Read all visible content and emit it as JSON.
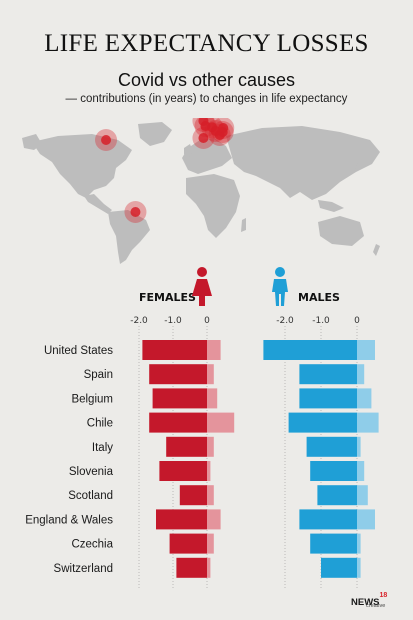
{
  "header": {
    "title": "LIFE EXPECTANCY LOSSES",
    "subtitle": "Covid vs other causes",
    "subtitle_note": "— contributions (in years) to changes in life expectancy"
  },
  "panels": {
    "females_label": "FEMALES",
    "males_label": "MALES"
  },
  "logo": {
    "main": "NEWS",
    "num": "18",
    "sub": "creative"
  },
  "icons": {
    "female": "female-person-icon",
    "male": "male-person-icon",
    "map": "world-map-icon"
  },
  "colors": {
    "female_dark": "#c4182b",
    "female_light": "#e4949c",
    "male_dark": "#1f9fd6",
    "male_light": "#8fcde9",
    "map_land": "#bdbdbd",
    "map_marker": "#d62029",
    "background": "#ecebe8"
  },
  "chart_data": [
    {
      "type": "bar",
      "orientation": "horizontal",
      "stacked": true,
      "panel": "FEMALES",
      "categories": [
        "United States",
        "Spain",
        "Belgium",
        "Chile",
        "Italy",
        "Slovenia",
        "Scotland",
        "England & Wales",
        "Czechia",
        "Switzerland"
      ],
      "series": [
        {
          "color": "#c4182b",
          "values": [
            -1.9,
            -1.7,
            -1.6,
            -1.7,
            -1.2,
            -1.4,
            -0.8,
            -1.5,
            -1.1,
            -0.9
          ]
        },
        {
          "color": "#e4949c",
          "values": [
            0.4,
            0.2,
            0.3,
            0.8,
            0.2,
            0.1,
            0.2,
            0.4,
            0.2,
            0.1
          ]
        }
      ],
      "xticks": [
        "-2.0",
        "-1.0",
        "0"
      ],
      "xlim": [
        -2.0,
        1.0
      ],
      "grid": true
    },
    {
      "type": "bar",
      "orientation": "horizontal",
      "stacked": true,
      "panel": "MALES",
      "categories": [
        "United States",
        "Spain",
        "Belgium",
        "Chile",
        "Italy",
        "Slovenia",
        "Scotland",
        "England & Wales",
        "Czechia",
        "Switzerland"
      ],
      "series": [
        {
          "color": "#1f9fd6",
          "values": [
            -2.6,
            -1.6,
            -1.6,
            -1.9,
            -1.4,
            -1.3,
            -1.1,
            -1.6,
            -1.3,
            -1.0
          ]
        },
        {
          "color": "#8fcde9",
          "values": [
            0.5,
            0.2,
            0.4,
            0.6,
            0.1,
            0.2,
            0.3,
            0.5,
            0.1,
            0.1
          ]
        }
      ],
      "xticks": [
        "-2.0",
        "-1.0",
        "0"
      ],
      "xlim": [
        -2.6,
        0.6
      ],
      "grid": true
    }
  ],
  "map_markers": [
    {
      "name": "United States",
      "lon": -100,
      "lat": 38
    },
    {
      "name": "Chile",
      "lon": -71,
      "lat": -34
    },
    {
      "name": "Spain",
      "lon": -4,
      "lat": 40
    },
    {
      "name": "England & Wales",
      "lon": -2,
      "lat": 52
    },
    {
      "name": "Scotland",
      "lon": -4,
      "lat": 57
    },
    {
      "name": "Belgium",
      "lon": 4.5,
      "lat": 50.8
    },
    {
      "name": "Switzerland",
      "lon": 8,
      "lat": 47
    },
    {
      "name": "Italy",
      "lon": 12,
      "lat": 43
    },
    {
      "name": "Slovenia",
      "lon": 15,
      "lat": 46
    },
    {
      "name": "Czechia",
      "lon": 15.5,
      "lat": 50
    }
  ]
}
